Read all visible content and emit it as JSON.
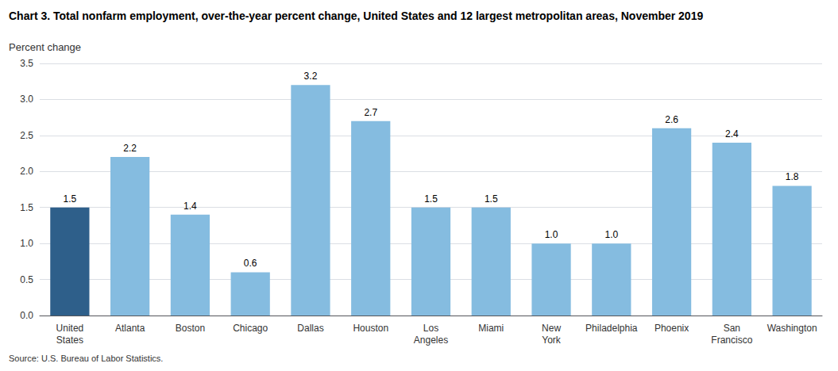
{
  "chart_data": {
    "type": "bar",
    "title": "Chart 3. Total nonfarm employment, over-the-year percent change, United States and 12 largest metropolitan areas, November 2019",
    "ylabel": "Percent change",
    "source": "Source: U.S. Bureau of Labor Statistics.",
    "categories": [
      "United\nStates",
      "Atlanta",
      "Boston",
      "Chicago",
      "Dallas",
      "Houston",
      "Los\nAngeles",
      "Miami",
      "New\nYork",
      "Philadelphia",
      "Phoenix",
      "San\nFrancisco",
      "Washington"
    ],
    "values": [
      1.5,
      2.2,
      1.4,
      0.6,
      3.2,
      2.7,
      1.5,
      1.5,
      1.0,
      1.0,
      2.6,
      2.4,
      1.8
    ],
    "value_labels": [
      "1.5",
      "2.2",
      "1.4",
      "0.6",
      "3.2",
      "2.7",
      "1.5",
      "1.5",
      "1.0",
      "1.0",
      "2.6",
      "2.4",
      "1.8"
    ],
    "colors": [
      "#2e5f8a",
      "#85bce0",
      "#85bce0",
      "#85bce0",
      "#85bce0",
      "#85bce0",
      "#85bce0",
      "#85bce0",
      "#85bce0",
      "#85bce0",
      "#85bce0",
      "#85bce0",
      "#85bce0"
    ],
    "ylim": [
      0,
      3.5
    ],
    "yticks": [
      {
        "value": 0,
        "label": "0.0"
      },
      0.5,
      {
        "value": 1,
        "label": "1.0"
      },
      1.5,
      {
        "value": 2,
        "label": "2.0"
      },
      2.5,
      {
        "value": 3,
        "label": "3.0"
      },
      3.5
    ],
    "data_labels": true,
    "grid": true
  }
}
